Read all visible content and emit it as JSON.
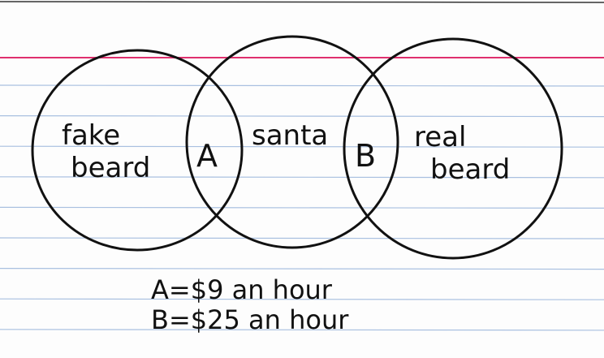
{
  "diagram": {
    "type": "venn",
    "sets": [
      {
        "label_line1": "fake",
        "label_line2": "beard"
      },
      {
        "label": "santa"
      },
      {
        "label_line1": "real",
        "label_line2": "beard"
      }
    ],
    "intersections": [
      {
        "label": "A"
      },
      {
        "label": "B"
      }
    ],
    "legend": [
      {
        "text": "A=$9 an hour"
      },
      {
        "text": "B=$25 an hour"
      }
    ]
  },
  "colors": {
    "margin_line": "#e0306e",
    "rule_lines": "#a9c0e0",
    "ink": "#111111",
    "paper": "#fdfdfd"
  }
}
